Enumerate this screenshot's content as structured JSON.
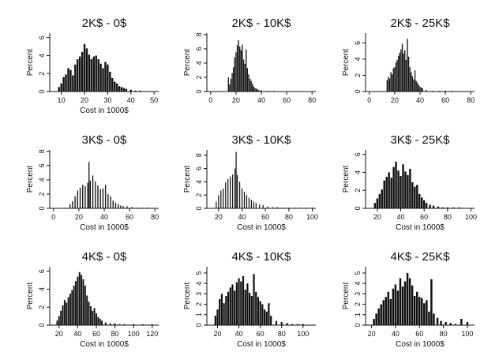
{
  "chart_data": [
    {
      "type": "bar",
      "title": "2K$ - 0$",
      "xlabel": "Cost in 1000$",
      "ylabel": "Percent",
      "xlim": [
        5,
        52
      ],
      "xticks": [
        10,
        20,
        30,
        40,
        50
      ],
      "ylim": [
        0,
        6.5
      ],
      "yticks": [
        0,
        2,
        4,
        6
      ],
      "x": [
        9,
        10,
        11,
        12,
        13,
        14,
        15,
        16,
        17,
        18,
        19,
        20,
        21,
        22,
        23,
        24,
        25,
        26,
        27,
        28,
        29,
        30,
        31,
        32,
        33,
        34,
        35,
        36,
        37,
        38,
        40,
        42,
        44
      ],
      "values": [
        0.5,
        0.9,
        1.6,
        1.9,
        2.6,
        2.4,
        1.8,
        3.0,
        3.6,
        3.9,
        4.4,
        5.3,
        4.8,
        4.1,
        3.6,
        3.9,
        4.0,
        3.6,
        3.1,
        2.6,
        3.3,
        3.0,
        2.2,
        1.5,
        1.1,
        0.9,
        0.6,
        0.5,
        0.4,
        0.3,
        0.2,
        0.1,
        0.1
      ]
    },
    {
      "type": "bar",
      "title": "2K$ - 10K$",
      "xlabel": "",
      "ylabel": "Percent",
      "xlim": [
        -3,
        83
      ],
      "xticks": [
        0,
        20,
        40,
        60,
        80
      ],
      "ylim": [
        0,
        8.2
      ],
      "yticks": [
        0,
        2,
        4,
        6,
        8
      ],
      "x": [
        14,
        15,
        16,
        17,
        18,
        19,
        20,
        21,
        22,
        23,
        24,
        25,
        26,
        27,
        28,
        29,
        30,
        31,
        32,
        33,
        34,
        35,
        36,
        37,
        38,
        40,
        45,
        50
      ],
      "values": [
        2.0,
        1.0,
        1.8,
        2.6,
        3.4,
        4.8,
        5.5,
        6.5,
        7.2,
        6.3,
        5.8,
        6.6,
        4.5,
        3.9,
        5.9,
        3.3,
        2.4,
        1.8,
        1.5,
        1.1,
        0.7,
        0.5,
        0.4,
        0.3,
        0.2,
        0.2,
        0.1,
        0.1
      ]
    },
    {
      "type": "bar",
      "title": "2K$ - 25K$",
      "xlabel": "",
      "ylabel": "Percent",
      "xlim": [
        -3,
        83
      ],
      "xticks": [
        0,
        20,
        40,
        60,
        80
      ],
      "ylim": [
        0,
        7.2
      ],
      "yticks": [
        0,
        2,
        4,
        6
      ],
      "x": [
        14,
        15,
        16,
        17,
        18,
        19,
        20,
        21,
        22,
        23,
        24,
        25,
        26,
        27,
        28,
        29,
        30,
        31,
        32,
        33,
        34,
        35,
        36,
        37,
        38,
        39,
        40,
        41,
        42,
        45,
        50,
        55,
        60,
        65
      ],
      "values": [
        1.4,
        1.8,
        1.6,
        2.4,
        2.1,
        2.9,
        3.0,
        3.6,
        3.9,
        4.4,
        4.8,
        5.2,
        5.9,
        4.7,
        5.1,
        3.9,
        6.5,
        4.3,
        3.0,
        2.4,
        1.9,
        1.5,
        2.6,
        1.3,
        1.1,
        0.8,
        0.6,
        0.5,
        0.4,
        0.2,
        0.1,
        0.1,
        0.1,
        0.1
      ]
    },
    {
      "type": "bar",
      "title": "3K$ - 0$",
      "xlabel": "Cost in 1000$",
      "ylabel": "Percent",
      "xlim": [
        -3,
        83
      ],
      "xticks": [
        0,
        20,
        40,
        60,
        80
      ],
      "ylim": [
        0,
        8.2
      ],
      "yticks": [
        0,
        2,
        4,
        6,
        8
      ],
      "x": [
        13,
        15,
        17,
        19,
        21,
        23,
        25,
        27,
        28,
        29,
        31,
        33,
        35,
        37,
        39,
        41,
        43,
        45,
        47,
        49,
        51,
        53,
        55,
        58,
        62,
        66,
        70,
        74
      ],
      "values": [
        0.6,
        1.0,
        1.7,
        2.5,
        2.9,
        3.3,
        3.1,
        3.6,
        6.5,
        3.9,
        4.6,
        3.8,
        3.2,
        2.7,
        2.8,
        3.3,
        2.0,
        1.7,
        1.1,
        0.8,
        0.6,
        0.4,
        0.3,
        0.3,
        0.2,
        0.1,
        0.1,
        0.1
      ]
    },
    {
      "type": "bar",
      "title": "3K$ - 10K$",
      "xlabel": "Cost in 1000$",
      "ylabel": "Percent",
      "xlim": [
        10,
        103
      ],
      "xticks": [
        20,
        40,
        60,
        80,
        100
      ],
      "ylim": [
        0,
        8.8
      ],
      "yticks": [
        0,
        2,
        4,
        6,
        8
      ],
      "x": [
        18,
        20,
        22,
        24,
        26,
        28,
        30,
        32,
        34,
        35,
        36,
        38,
        40,
        42,
        44,
        46,
        48,
        50,
        52,
        55,
        58,
        62,
        66,
        70,
        75,
        80,
        85,
        90,
        95,
        100
      ],
      "values": [
        1.0,
        2.0,
        2.7,
        3.0,
        3.9,
        4.4,
        4.8,
        5.1,
        6.0,
        8.5,
        5.0,
        4.0,
        3.0,
        2.5,
        2.0,
        1.6,
        1.3,
        1.0,
        0.8,
        0.6,
        0.5,
        0.3,
        0.2,
        0.2,
        0.1,
        0.1,
        0.1,
        0.1,
        0.1,
        0.1
      ]
    },
    {
      "type": "bar",
      "title": "3K$ - 25K$",
      "xlabel": "Cost in 1000$",
      "ylabel": "Percent",
      "xlim": [
        10,
        103
      ],
      "xticks": [
        20,
        40,
        60,
        80,
        100
      ],
      "ylim": [
        0,
        6.5
      ],
      "yticks": [
        0,
        2,
        4,
        6
      ],
      "x": [
        18,
        20,
        22,
        24,
        26,
        28,
        30,
        32,
        34,
        36,
        38,
        40,
        42,
        44,
        46,
        48,
        50,
        52,
        54,
        56,
        58,
        60,
        62,
        65,
        68,
        72,
        76,
        80,
        85,
        90
      ],
      "values": [
        0.6,
        1.1,
        1.6,
        2.1,
        3.1,
        3.5,
        4.0,
        3.4,
        4.6,
        5.2,
        4.2,
        3.6,
        4.9,
        4.1,
        3.7,
        4.4,
        2.9,
        2.4,
        2.6,
        1.6,
        1.2,
        0.9,
        0.6,
        0.4,
        0.3,
        0.2,
        0.1,
        0.1,
        0.1,
        0.1
      ]
    },
    {
      "type": "bar",
      "title": "4K$ - 0$",
      "xlabel": "Cost in 1000$",
      "ylabel": "Percent",
      "xlim": [
        10,
        127
      ],
      "xticks": [
        20,
        40,
        60,
        80,
        100,
        120
      ],
      "ylim": [
        0,
        6.5
      ],
      "yticks": [
        0,
        2,
        4,
        6
      ],
      "x": [
        18,
        20,
        22,
        24,
        26,
        28,
        30,
        32,
        34,
        36,
        38,
        40,
        42,
        44,
        46,
        48,
        50,
        52,
        54,
        56,
        58,
        60,
        62,
        64,
        66,
        70,
        75,
        80,
        85,
        90,
        100,
        110,
        120
      ],
      "values": [
        0.5,
        1.0,
        1.6,
        2.2,
        2.8,
        2.5,
        3.1,
        3.5,
        3.9,
        4.4,
        4.9,
        5.4,
        5.9,
        5.6,
        5.1,
        4.4,
        3.3,
        2.6,
        2.1,
        1.6,
        1.9,
        1.3,
        0.9,
        0.7,
        0.5,
        0.3,
        0.2,
        0.2,
        0.1,
        0.1,
        0.1,
        0.1,
        0.1
      ]
    },
    {
      "type": "bar",
      "title": "4K$ - 10K$",
      "xlabel": "Cost in 1000$",
      "ylabel": "Percent",
      "xlim": [
        10,
        112
      ],
      "xticks": [
        20,
        40,
        60,
        80,
        100
      ],
      "ylim": [
        0,
        5.6
      ],
      "yticks": [
        0,
        1,
        2,
        3,
        4,
        5
      ],
      "x": [
        18,
        20,
        22,
        24,
        26,
        28,
        30,
        32,
        34,
        36,
        38,
        40,
        42,
        44,
        46,
        48,
        50,
        52,
        54,
        56,
        58,
        60,
        62,
        64,
        66,
        68,
        70,
        75,
        80,
        85,
        90,
        95,
        100
      ],
      "values": [
        0.9,
        1.5,
        2.5,
        3.0,
        2.1,
        2.8,
        3.2,
        3.6,
        3.9,
        3.3,
        4.1,
        4.5,
        4.2,
        4.7,
        3.4,
        4.0,
        3.1,
        2.8,
        4.9,
        3.2,
        2.7,
        2.3,
        2.0,
        1.5,
        1.3,
        2.1,
        0.9,
        0.4,
        0.3,
        0.2,
        0.1,
        0.1,
        0.1
      ]
    },
    {
      "type": "bar",
      "title": "4K$ - 25K$",
      "xlabel": "Cost in 1000$",
      "ylabel": "Percent",
      "xlim": [
        15,
        106
      ],
      "xticks": [
        20,
        40,
        60,
        80,
        100
      ],
      "ylim": [
        0,
        5.6
      ],
      "yticks": [
        0,
        1,
        2,
        3,
        4,
        5
      ],
      "x": [
        22,
        24,
        26,
        28,
        30,
        32,
        34,
        36,
        38,
        40,
        42,
        44,
        46,
        48,
        50,
        52,
        54,
        56,
        58,
        60,
        62,
        64,
        66,
        68,
        70,
        72,
        75,
        78,
        82,
        86,
        90,
        95,
        100
      ],
      "values": [
        0.6,
        1.1,
        1.6,
        2.0,
        2.4,
        2.7,
        3.2,
        2.5,
        3.5,
        3.9,
        3.3,
        4.5,
        3.7,
        4.2,
        5.0,
        4.5,
        3.8,
        2.8,
        3.2,
        2.7,
        2.6,
        2.1,
        2.4,
        1.3,
        4.4,
        1.1,
        0.7,
        0.4,
        0.3,
        0.2,
        0.1,
        0.6,
        0.3
      ]
    }
  ]
}
